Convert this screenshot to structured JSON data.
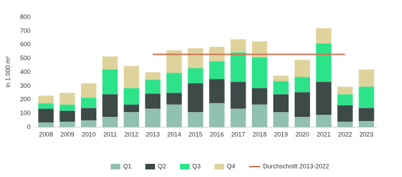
{
  "chart_data": {
    "type": "bar",
    "stacked": true,
    "y_label": "in 1.000 m²",
    "categories": [
      "2008",
      "2009",
      "2010",
      "2011",
      "2012",
      "2013",
      "2014",
      "2015",
      "2016",
      "2017",
      "2018",
      "2019",
      "2020",
      "2021",
      "2022",
      "2023"
    ],
    "series": [
      {
        "name": "Q1",
        "color": "#8fc1ae",
        "values": [
          35,
          40,
          50,
          75,
          110,
          135,
          165,
          110,
          175,
          135,
          165,
          110,
          75,
          90,
          40,
          45
        ]
      },
      {
        "name": "Q2",
        "color": "#3d4a48",
        "values": [
          100,
          80,
          90,
          165,
          55,
          110,
          85,
          210,
          175,
          195,
          120,
          130,
          180,
          240,
          120,
          95
        ]
      },
      {
        "name": "Q3",
        "color": "#2de38a",
        "values": [
          40,
          45,
          75,
          180,
          120,
          100,
          145,
          110,
          130,
          215,
          225,
          95,
          110,
          280,
          80,
          155
        ]
      },
      {
        "name": "Q4",
        "color": "#dfd39c",
        "values": [
          55,
          85,
          105,
          95,
          160,
          55,
          165,
          145,
          105,
          95,
          115,
          40,
          125,
          110,
          55,
          125
        ]
      },
      {
        "name": "Durchschnitt 2013-2022",
        "color": "#d0714f",
        "type": "line",
        "values": [
          null,
          null,
          null,
          null,
          null,
          530,
          530,
          530,
          530,
          530,
          530,
          530,
          530,
          530,
          530,
          null
        ]
      }
    ],
    "ylim": [
      0,
      800
    ],
    "yticks": [
      0,
      100,
      200,
      300,
      400,
      500,
      600,
      700,
      800
    ],
    "grid": false,
    "legend": "bottom"
  }
}
